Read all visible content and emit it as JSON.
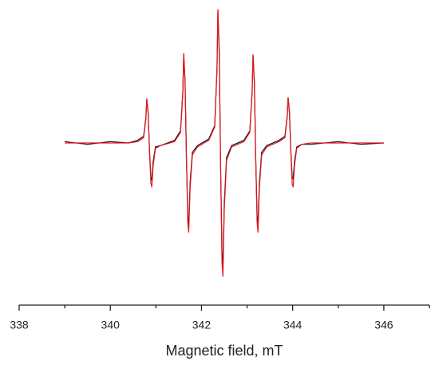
{
  "chart_data": {
    "type": "line",
    "xlabel": "Magnetic field, mT",
    "xlim": [
      338,
      347
    ],
    "xticks": [
      338,
      340,
      342,
      344,
      346
    ],
    "xminorticks": [
      339,
      341,
      343,
      345,
      347
    ],
    "ylim": [
      -1,
      1
    ],
    "x": [
      339,
      339.5,
      340,
      340.4,
      340.6,
      340.73,
      340.78,
      340.8,
      340.83,
      340.86,
      340.89,
      340.91,
      340.94,
      340.99,
      341.1,
      341.41,
      341.54,
      341.59,
      341.61,
      341.64,
      341.67,
      341.7,
      341.72,
      341.75,
      341.8,
      341.91,
      342.16,
      342.29,
      342.34,
      342.36,
      342.39,
      342.42,
      342.45,
      342.47,
      342.5,
      342.55,
      342.66,
      342.93,
      343.06,
      343.11,
      343.13,
      343.16,
      343.19,
      343.22,
      343.24,
      343.27,
      343.32,
      343.43,
      343.7,
      343.83,
      343.88,
      343.9,
      343.93,
      343.96,
      343.99,
      344.01,
      344.04,
      344.09,
      344.2,
      344.4,
      345,
      345.5,
      346
    ],
    "series": [
      {
        "color": "#111111",
        "values": [
          0.01,
          -0.01,
          0.01,
          0,
          0.02,
          0.05,
          0.19,
          0.33,
          0.22,
          -0.06,
          -0.26,
          -0.28,
          -0.14,
          -0.03,
          -0.02,
          0.02,
          0.09,
          0.38,
          0.67,
          0.45,
          -0.12,
          -0.55,
          -0.62,
          -0.3,
          -0.07,
          -0.02,
          0.03,
          0.13,
          0.56,
          0.99,
          0.66,
          -0.19,
          -0.82,
          -0.92,
          -0.45,
          -0.11,
          -0.02,
          0.02,
          0.09,
          0.38,
          0.66,
          0.45,
          -0.12,
          -0.55,
          -0.6,
          -0.3,
          -0.07,
          -0.02,
          0.02,
          0.05,
          0.2,
          0.34,
          0.22,
          -0.06,
          -0.26,
          -0.27,
          -0.14,
          -0.03,
          -0.01,
          -0.01,
          0.01,
          -0.01,
          0
        ]
      },
      {
        "color": "#e8141c",
        "values": [
          0,
          0,
          0,
          0,
          0.01,
          0.04,
          0.18,
          0.33,
          0.23,
          -0.07,
          -0.3,
          -0.33,
          -0.17,
          -0.04,
          -0.02,
          0.01,
          0.08,
          0.37,
          0.67,
          0.47,
          -0.13,
          -0.6,
          -0.67,
          -0.34,
          -0.09,
          -0.03,
          0.02,
          0.12,
          0.55,
          1.0,
          0.7,
          -0.2,
          -0.9,
          -1.0,
          -0.5,
          -0.13,
          -0.03,
          0.01,
          0.08,
          0.37,
          0.66,
          0.47,
          -0.13,
          -0.6,
          -0.67,
          -0.34,
          -0.09,
          -0.03,
          0.01,
          0.04,
          0.19,
          0.34,
          0.24,
          -0.07,
          -0.31,
          -0.33,
          -0.17,
          -0.04,
          -0.01,
          0,
          0,
          0,
          0
        ]
      }
    ]
  }
}
